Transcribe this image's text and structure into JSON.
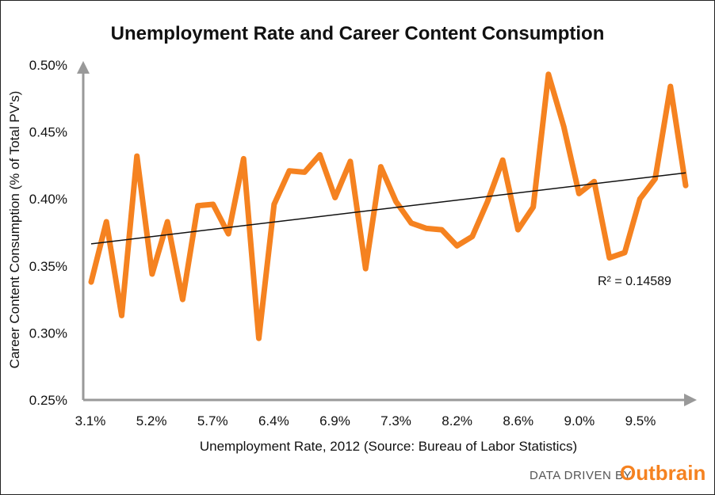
{
  "chart_data": {
    "type": "line",
    "title": "Unemployment Rate and Career Content Consumption",
    "xlabel": "Unemployment Rate, 2012 (Source: Bureau of Labor Statistics)",
    "ylabel": "Career Content Consumption (% of Total PV's)",
    "ylim": [
      0.25,
      0.5
    ],
    "yticks": [
      "0.50%",
      "0.45%",
      "0.40%",
      "0.35%",
      "0.30%",
      "0.25%"
    ],
    "xticks": [
      "3.1%",
      "5.2%",
      "5.7%",
      "6.4%",
      "6.9%",
      "7.3%",
      "8.2%",
      "8.6%",
      "9.0%",
      "9.5%"
    ],
    "series": [
      {
        "color": "#f58220",
        "values": [
          0.338,
          0.383,
          0.313,
          0.432,
          0.344,
          0.383,
          0.325,
          0.395,
          0.396,
          0.374,
          0.43,
          0.296,
          0.396,
          0.421,
          0.42,
          0.433,
          0.401,
          0.428,
          0.348,
          0.424,
          0.398,
          0.382,
          0.378,
          0.377,
          0.365,
          0.372,
          0.398,
          0.429,
          0.377,
          0.394,
          0.493,
          0.454,
          0.404,
          0.413,
          0.356,
          0.36,
          0.4,
          0.415,
          0.484,
          0.41
        ]
      }
    ],
    "trendline": {
      "start": 0.3665,
      "end": 0.4195,
      "color": "#111111"
    },
    "annotation": "R² = 0.14589",
    "grid": false
  },
  "footer": {
    "data_driven_label": "DATA DRIVEN BY",
    "brand": "Outbrain",
    "brand_color": "#f58220"
  }
}
